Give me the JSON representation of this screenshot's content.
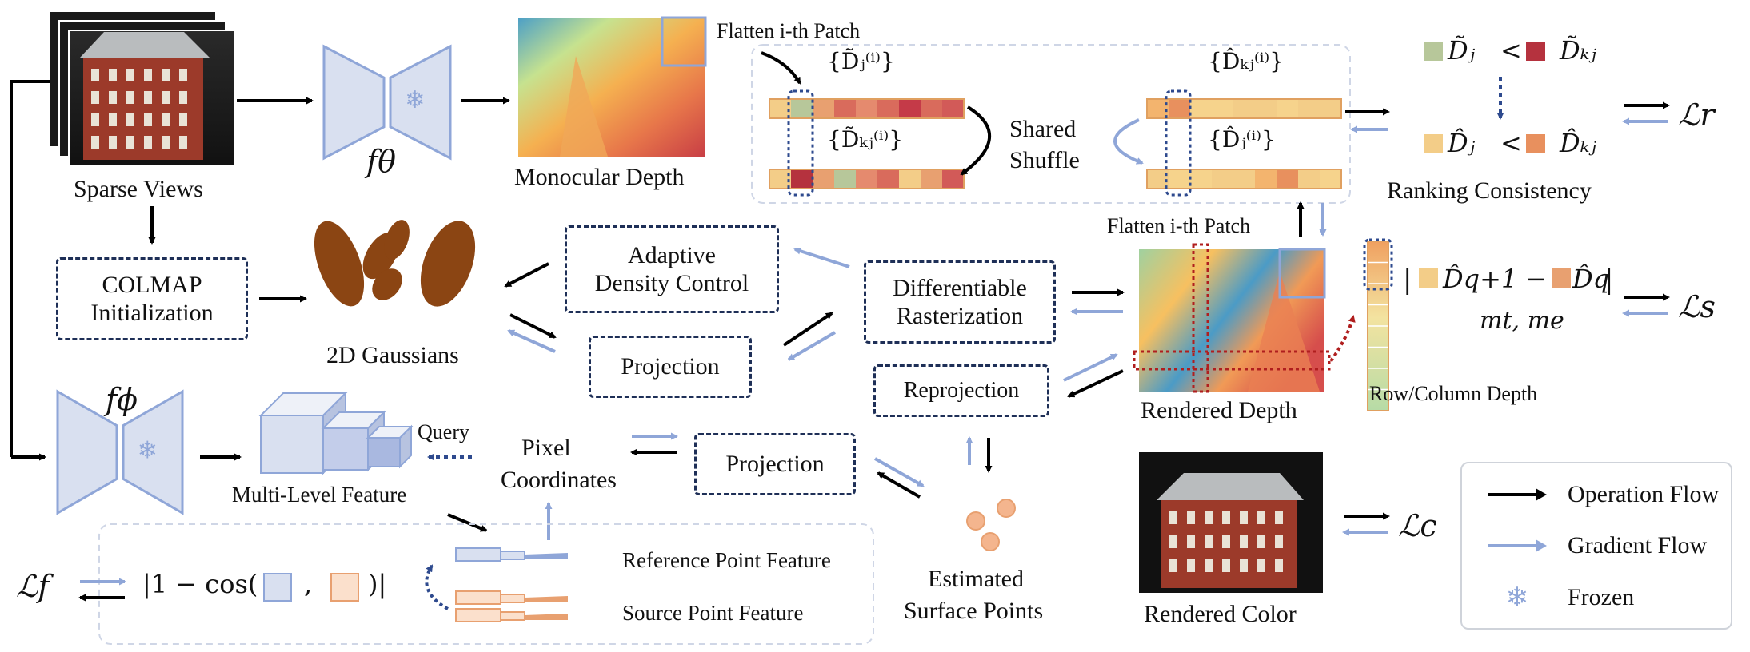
{
  "labels": {
    "sparse_views": "Sparse Views",
    "f_theta": "fθ",
    "f_phi": "fϕ",
    "monocular_depth": "Monocular Depth",
    "flatten_top": "Flatten i-th Patch",
    "shared_shuffle_1": "Shared",
    "shared_shuffle_2": "Shuffle",
    "ranking_consistency": "Ranking Consistency",
    "colmap_1": "COLMAP",
    "colmap_2": "Initialization",
    "gaussians": "2D Gaussians",
    "adc_1": "Adaptive",
    "adc_2": "Density Control",
    "diff_1": "Differentiable",
    "diff_2": "Rasterization",
    "projection_top": "Projection",
    "reprojection": "Reprojection",
    "flatten_mid": "Flatten i-th Patch",
    "rendered_depth": "Rendered Depth",
    "row_column_depth": "Row/Column Depth",
    "query": "Query",
    "multi_level_feature": "Multi-Level Feature",
    "pixel_1": "Pixel",
    "pixel_2": "Coordinates",
    "projection_bottom": "Projection",
    "reference_point_feature": "Reference Point Feature",
    "source_point_feature": "Source Point Feature",
    "estimated_1": "Estimated",
    "estimated_2": "Surface Points",
    "rendered_color": "Rendered Color"
  },
  "math": {
    "set_dj": "{D̃ⱼ⁽ⁱ⁾}",
    "set_dkj": "{D̃ₖⱼ⁽ⁱ⁾}",
    "set_hat_dkj": "{D̂ₖⱼ⁽ⁱ⁾}",
    "set_hat_dj": "{D̂ⱼ⁽ⁱ⁾}",
    "rank_top_left": "D̃ⱼ",
    "rank_top_right": "D̃ₖⱼ",
    "rank_bottom_left": "D̂ⱼ",
    "rank_bottom_right": "D̂ₖⱼ",
    "lt": "<",
    "smooth_left": "D̂q+1 −",
    "smooth_right": "D̂q",
    "bars": "|",
    "mt_me": "mt, me",
    "feat_loss_open": "|1 − cos(",
    "feat_loss_comma": ",",
    "feat_loss_close": ")|",
    "L_r": "ℒr",
    "L_s": "ℒs",
    "L_c": "ℒc",
    "L_f": "ℒf"
  },
  "legend": {
    "operation": "Operation Flow",
    "gradient": "Gradient Flow",
    "frozen": "Frozen"
  },
  "colors": {
    "operation_flow": "#000000",
    "gradient_flow": "#8fa6d8",
    "encoder_fill": "#d9e0f0",
    "encoder_stroke": "#8fa6d8",
    "gaussian": "#8b4513",
    "dashed_border": "#1e2f57",
    "point_orange": "#e8a070"
  }
}
